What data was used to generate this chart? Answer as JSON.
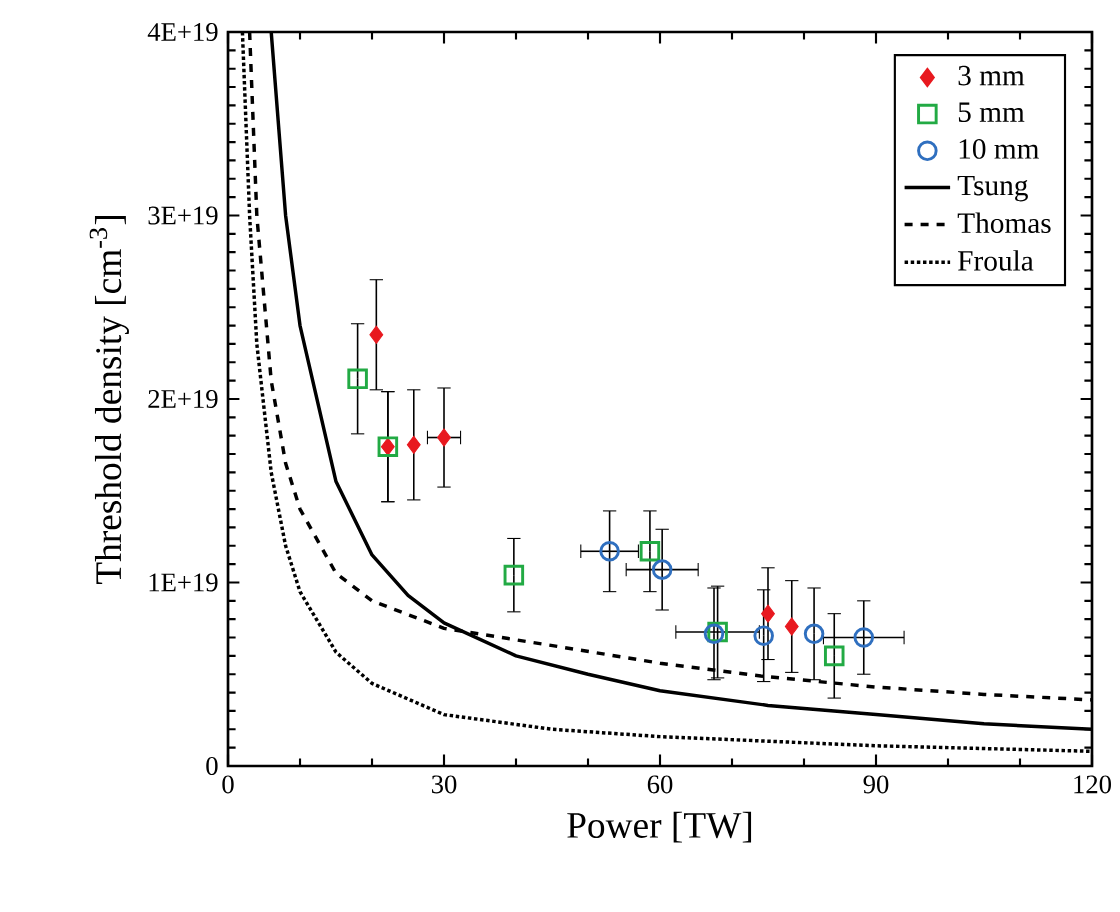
{
  "chart_data": {
    "type": "scatter",
    "xlabel": "Power [TW]",
    "ylabel": "Threshold density [cm$^{-3}$]",
    "xlim": [
      0,
      120
    ],
    "xticks": [
      0,
      30,
      60,
      90,
      120
    ],
    "ylim": [
      0,
      4e+19
    ],
    "yticks": [
      0,
      {
        "value": 1e+19,
        "label": "1E+19"
      },
      {
        "value": 2e+19,
        "label": "2E+19"
      },
      {
        "value": 3e+19,
        "label": "3E+19"
      },
      {
        "value": 4e+19,
        "label": "4E+19"
      }
    ],
    "grid": false,
    "legend": "top right",
    "series": [
      {
        "name": "3 mm",
        "marker": "diamond",
        "color": "#e8191f",
        "x": [
          20.6,
          22.2,
          25.8,
          30,
          75,
          78.3
        ],
        "values": [
          2.35e+19,
          1.74e+19,
          1.75e+19,
          1.79e+19,
          8.3e+18,
          7.6e+18
        ],
        "errors": [
          3e+18,
          3e+18,
          3e+18,
          2.7e+18,
          2.5e+18,
          2.5e+18
        ],
        "xerrors": [
          null,
          null,
          null,
          2.3,
          null,
          null
        ]
      },
      {
        "name": "5 mm",
        "marker": "square",
        "color": "#22aa44",
        "x": [
          18,
          22.2,
          39.7,
          58.6,
          68,
          84.2
        ],
        "values": [
          2.11e+19,
          1.74e+19,
          1.04e+19,
          1.17e+19,
          7.3e+18,
          6e+18
        ],
        "errors": [
          3e+18,
          3e+18,
          2e+18,
          2.2e+18,
          2.5e+18,
          2.3e+18
        ],
        "xerrors": [
          null,
          null,
          null,
          null,
          5.8,
          null
        ]
      },
      {
        "name": "10 mm",
        "marker": "circle",
        "color": "#2f6fbf",
        "x": [
          53,
          60.3,
          67.5,
          74.4,
          81.4,
          88.3
        ],
        "values": [
          1.17e+19,
          1.07e+19,
          7.2e+18,
          7.1e+18,
          7.2e+18,
          7e+18
        ],
        "errors": [
          2.2e+18,
          2.2e+18,
          2.5e+18,
          2.5e+18,
          2.5e+18,
          2e+18
        ],
        "xerrors": [
          4,
          5,
          null,
          null,
          null,
          5.6
        ]
      },
      {
        "name": "Tsung",
        "type": "line",
        "marker": "none",
        "line_style": "solid",
        "color": "#000000",
        "x": [
          6,
          8,
          10,
          15,
          20,
          25,
          30,
          40,
          50,
          60,
          75,
          90,
          105,
          120
        ],
        "values": [
          4e+19,
          3e+19,
          2.4e+19,
          1.55e+19,
          1.15e+19,
          9.3e+18,
          7.8e+18,
          6e+18,
          5e+18,
          4.1e+18,
          3.3e+18,
          2.8e+18,
          2.3e+18,
          2e+18
        ]
      },
      {
        "name": "Thomas",
        "type": "line",
        "marker": "none",
        "line_style": "dashed",
        "color": "#000000",
        "x": [
          3,
          4,
          6,
          8,
          10,
          15,
          20,
          30,
          46,
          60,
          74,
          90,
          105,
          120
        ],
        "values": [
          4e+19,
          3e+19,
          2.1e+19,
          1.65e+19,
          1.4e+19,
          1.05e+19,
          9e+18,
          7.5e+18,
          6.5e+18,
          5.6e+18,
          4.9e+18,
          4.3e+18,
          3.9e+18,
          3.6e+18
        ]
      },
      {
        "name": "Froula",
        "type": "line",
        "marker": "none",
        "line_style": "dotted",
        "color": "#000000",
        "x": [
          2,
          3,
          4,
          6,
          8,
          10,
          15,
          20,
          30,
          45,
          60,
          90,
          120
        ],
        "values": [
          4e+19,
          3e+19,
          2.3e+19,
          1.6e+19,
          1.2e+19,
          9.5e+18,
          6.2e+18,
          4.5e+18,
          2.8e+18,
          2e+18,
          1.6e+18,
          1.1e+18,
          8e+17
        ]
      }
    ]
  }
}
